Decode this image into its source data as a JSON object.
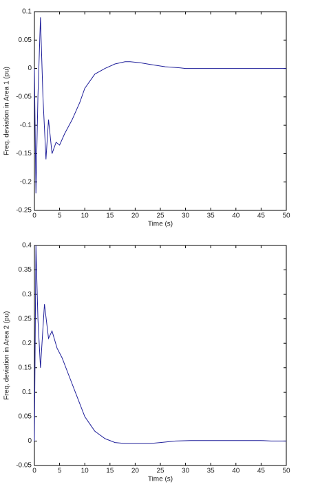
{
  "chart_data": [
    {
      "type": "line",
      "xlabel": "Time (s)",
      "ylabel": "Freq. deviation in Area 1 (pu)",
      "xlim": [
        0,
        50
      ],
      "ylim": [
        -0.25,
        0.1
      ],
      "xticks": [
        0,
        5,
        10,
        15,
        20,
        25,
        30,
        35,
        40,
        45,
        50
      ],
      "yticks": [
        -0.25,
        -0.2,
        -0.15,
        -0.1,
        -0.05,
        0,
        0.05,
        0.1
      ],
      "series": [
        {
          "color": "#1f1f9a",
          "x": [
            0,
            0.3,
            0.7,
            1.2,
            1.7,
            2.3,
            2.8,
            3.5,
            4.3,
            5,
            6,
            7.5,
            9,
            10,
            12,
            14,
            16,
            18,
            19,
            21,
            23,
            26,
            29,
            30,
            50
          ],
          "values": [
            0,
            -0.22,
            -0.05,
            0.09,
            -0.05,
            -0.16,
            -0.09,
            -0.15,
            -0.13,
            -0.135,
            -0.115,
            -0.09,
            -0.06,
            -0.035,
            -0.01,
            0,
            0.008,
            0.012,
            0.012,
            0.01,
            0.007,
            0.003,
            0.001,
            0,
            0
          ]
        }
      ]
    },
    {
      "type": "line",
      "xlabel": "Time (s)",
      "ylabel": "Freq. deviation in Area 2 (pu)",
      "xlim": [
        0,
        50
      ],
      "ylim": [
        -0.05,
        0.4
      ],
      "xticks": [
        0,
        5,
        10,
        15,
        20,
        25,
        30,
        35,
        40,
        45,
        50
      ],
      "yticks": [
        -0.05,
        0,
        0.05,
        0.1,
        0.15,
        0.2,
        0.25,
        0.3,
        0.35,
        0.4
      ],
      "series": [
        {
          "color": "#1f1f9a",
          "x": [
            0,
            0.3,
            0.7,
            1.2,
            2,
            2.8,
            3.5,
            4.5,
            5.5,
            7,
            8.5,
            10,
            12,
            14,
            16,
            18,
            23,
            25,
            28,
            31,
            45,
            47,
            50
          ],
          "values": [
            0,
            0.4,
            0.25,
            0.15,
            0.28,
            0.21,
            0.225,
            0.19,
            0.17,
            0.13,
            0.09,
            0.05,
            0.02,
            0.005,
            -0.003,
            -0.005,
            -0.005,
            -0.003,
            0,
            0.001,
            0.001,
            0,
            0
          ]
        }
      ]
    }
  ]
}
